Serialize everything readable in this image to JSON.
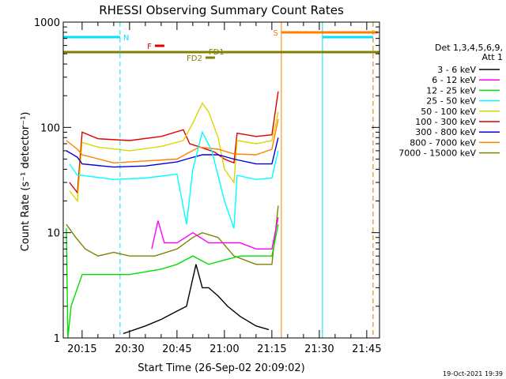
{
  "chart_data": {
    "type": "line",
    "title": "RHESSI Observing Summary Count Rates",
    "xlabel": "Start Time (26-Sep-02 20:09:02)",
    "ylabel": "Count Rate (s⁻¹ detector⁻¹)",
    "x_start": "20:09:02",
    "x_range": [
      "20:09:02",
      "21:49:02"
    ],
    "y_scale": "log",
    "ylim": [
      1,
      1000
    ],
    "x_ticks": [
      "20:15",
      "20:30",
      "20:45",
      "21:00",
      "21:15",
      "21:30",
      "21:45"
    ],
    "y_ticks": [
      "1",
      "10",
      "100",
      "1000"
    ],
    "footer_date": "19-Oct-2021 19:39",
    "legend": {
      "header": [
        "Det 1,3,4,5,6,9,",
        "Att 1"
      ],
      "entries": [
        {
          "label": "3 - 6 keV",
          "color": "#000000"
        },
        {
          "label": "6 - 12 keV",
          "color": "#ff00ff"
        },
        {
          "label": "12 - 25 keV",
          "color": "#00e000"
        },
        {
          "label": "25 - 50 keV",
          "color": "#00ffff"
        },
        {
          "label": "50 - 100 keV",
          "color": "#d8d800"
        },
        {
          "label": "100 - 300 keV",
          "color": "#e00000"
        },
        {
          "label": "300 - 800 keV",
          "color": "#0000e0"
        },
        {
          "label": "800 - 7000 keV",
          "color": "#ff8000"
        },
        {
          "label": "7000 - 15000 keV",
          "color": "#808000"
        }
      ]
    },
    "flags": [
      {
        "label": "N",
        "color": "#00e0ff",
        "intervals": [
          [
            "20:09:02",
            "20:27:00"
          ],
          [
            "21:31:00",
            "21:47:00"
          ]
        ]
      },
      {
        "label": "S",
        "color": "#ff8000",
        "intervals": [
          [
            "21:18:00",
            "21:48:30"
          ]
        ]
      },
      {
        "label": "F",
        "color": "#e00000",
        "intervals": [
          [
            "20:38:00",
            "20:41:00"
          ]
        ]
      },
      {
        "label": "FD1",
        "color": "#808000",
        "intervals": [
          [
            "20:09:02",
            "21:49:02"
          ]
        ]
      },
      {
        "label": "FD2",
        "color": "#808000",
        "intervals": [
          [
            "20:54:00",
            "20:57:00"
          ]
        ]
      }
    ],
    "vertical_markers": [
      {
        "time": "20:09:02",
        "color": "#00e0ff",
        "style": "solid"
      },
      {
        "time": "20:27:00",
        "color": "#00e0ff",
        "style": "dashed"
      },
      {
        "time": "21:18:00",
        "color": "#ff8000",
        "style": "solid"
      },
      {
        "time": "21:31:00",
        "color": "#00e0ff",
        "style": "solid"
      },
      {
        "time": "21:47:00",
        "color": "#00e0ff",
        "style": "dashed"
      },
      {
        "time": "21:47:00",
        "color": "#ff8000",
        "style": "dashed"
      }
    ],
    "series": [
      {
        "name": "100 - 300 keV",
        "color": "#e00000",
        "points": [
          [
            "20:11:00",
            30
          ],
          [
            "20:13:30",
            24
          ],
          [
            "20:15:00",
            90
          ],
          [
            "20:20:00",
            78
          ],
          [
            "20:30:00",
            75
          ],
          [
            "20:40:00",
            82
          ],
          [
            "20:47:00",
            95
          ],
          [
            "20:49:00",
            70
          ],
          [
            "20:53:00",
            64
          ],
          [
            "20:57:00",
            58
          ],
          [
            "21:00:00",
            50
          ],
          [
            "21:03:00",
            46
          ],
          [
            "21:04:00",
            88
          ],
          [
            "21:10:00",
            82
          ],
          [
            "21:15:00",
            85
          ],
          [
            "21:17:00",
            220
          ]
        ]
      },
      {
        "name": "50 - 100 keV",
        "color": "#d8d800",
        "points": [
          [
            "20:11:00",
            25
          ],
          [
            "20:13:30",
            20
          ],
          [
            "20:15:00",
            72
          ],
          [
            "20:20:00",
            65
          ],
          [
            "20:30:00",
            60
          ],
          [
            "20:40:00",
            66
          ],
          [
            "20:47:00",
            75
          ],
          [
            "20:50:00",
            110
          ],
          [
            "20:53:00",
            170
          ],
          [
            "20:55:00",
            140
          ],
          [
            "20:58:00",
            80
          ],
          [
            "21:00:00",
            40
          ],
          [
            "21:03:00",
            30
          ],
          [
            "21:04:00",
            75
          ],
          [
            "21:10:00",
            70
          ],
          [
            "21:15:00",
            75
          ],
          [
            "21:17:00",
            140
          ]
        ]
      },
      {
        "name": "800 - 7000 keV",
        "color": "#ff8000",
        "points": [
          [
            "20:10:00",
            75
          ],
          [
            "20:13:30",
            62
          ],
          [
            "20:15:00",
            55
          ],
          [
            "20:25:00",
            46
          ],
          [
            "20:35:00",
            48
          ],
          [
            "20:45:00",
            50
          ],
          [
            "20:48:00",
            56
          ],
          [
            "20:52:00",
            65
          ],
          [
            "20:58:00",
            62
          ],
          [
            "21:03:00",
            56
          ],
          [
            "21:10:00",
            55
          ],
          [
            "21:15:00",
            62
          ],
          [
            "21:17:00",
            120
          ]
        ]
      },
      {
        "name": "300 - 800 keV",
        "color": "#0000e0",
        "points": [
          [
            "20:10:00",
            60
          ],
          [
            "20:13:30",
            52
          ],
          [
            "20:15:00",
            45
          ],
          [
            "20:25:00",
            42
          ],
          [
            "20:35:00",
            43
          ],
          [
            "20:45:00",
            47
          ],
          [
            "20:48:00",
            50
          ],
          [
            "20:53:00",
            55
          ],
          [
            "20:58:00",
            55
          ],
          [
            "21:03:00",
            50
          ],
          [
            "21:10:00",
            45
          ],
          [
            "21:15:00",
            45
          ],
          [
            "21:17:00",
            80
          ]
        ]
      },
      {
        "name": "25 - 50 keV",
        "color": "#00ffff",
        "points": [
          [
            "20:11:00",
            45
          ],
          [
            "20:13:30",
            35
          ],
          [
            "20:15:00",
            35
          ],
          [
            "20:25:00",
            32
          ],
          [
            "20:35:00",
            33
          ],
          [
            "20:45:00",
            36
          ],
          [
            "20:48:00",
            12
          ],
          [
            "20:50:00",
            40
          ],
          [
            "20:53:00",
            90
          ],
          [
            "20:56:00",
            60
          ],
          [
            "21:00:00",
            20
          ],
          [
            "21:03:00",
            11
          ],
          [
            "21:04:00",
            35
          ],
          [
            "21:10:00",
            32
          ],
          [
            "21:15:00",
            33
          ],
          [
            "21:17:00",
            60
          ]
        ]
      },
      {
        "name": "7000 - 15000 keV",
        "color": "#808000",
        "points": [
          [
            "20:10:00",
            12
          ],
          [
            "20:13:00",
            9
          ],
          [
            "20:16:00",
            7
          ],
          [
            "20:20:00",
            6
          ],
          [
            "20:25:00",
            6.5
          ],
          [
            "20:30:00",
            6
          ],
          [
            "20:38:00",
            6
          ],
          [
            "20:45:00",
            7
          ],
          [
            "20:50:00",
            9
          ],
          [
            "20:53:00",
            10
          ],
          [
            "20:58:00",
            9
          ],
          [
            "21:03:00",
            6
          ],
          [
            "21:10:00",
            5
          ],
          [
            "21:15:00",
            5
          ],
          [
            "21:17:00",
            18
          ]
        ]
      },
      {
        "name": "6 - 12 keV",
        "color": "#ff00ff",
        "points": [
          [
            "20:37:00",
            7
          ],
          [
            "20:39:00",
            13
          ],
          [
            "20:41:00",
            8
          ],
          [
            "20:45:00",
            8
          ],
          [
            "20:50:00",
            10
          ],
          [
            "20:55:00",
            8
          ],
          [
            "21:00:00",
            8
          ],
          [
            "21:05:00",
            8
          ],
          [
            "21:10:00",
            7
          ],
          [
            "21:15:00",
            7
          ],
          [
            "21:17:00",
            14
          ]
        ]
      },
      {
        "name": "12 - 25 keV",
        "color": "#00e000",
        "points": [
          [
            "20:10:00",
            11
          ],
          [
            "20:10:30",
            1
          ],
          [
            "20:11:30",
            2
          ],
          [
            "20:15:00",
            4
          ],
          [
            "20:20:00",
            4
          ],
          [
            "20:30:00",
            4
          ],
          [
            "20:40:00",
            4.5
          ],
          [
            "20:45:00",
            5
          ],
          [
            "20:50:00",
            6
          ],
          [
            "20:55:00",
            5
          ],
          [
            "21:00:00",
            5.5
          ],
          [
            "21:05:00",
            6
          ],
          [
            "21:10:00",
            6
          ],
          [
            "21:15:00",
            6
          ],
          [
            "21:17:00",
            12
          ]
        ]
      },
      {
        "name": "3 - 6 keV",
        "color": "#000000",
        "points": [
          [
            "20:28:00",
            1.1
          ],
          [
            "20:35:00",
            1.3
          ],
          [
            "20:40:00",
            1.5
          ],
          [
            "20:45:00",
            1.8
          ],
          [
            "20:48:00",
            2
          ],
          [
            "20:51:00",
            5
          ],
          [
            "20:53:00",
            3
          ],
          [
            "20:55:00",
            3
          ],
          [
            "20:58:00",
            2.5
          ],
          [
            "21:01:00",
            2
          ],
          [
            "21:05:00",
            1.6
          ],
          [
            "21:10:00",
            1.3
          ],
          [
            "21:14:00",
            1.2
          ]
        ]
      }
    ]
  }
}
